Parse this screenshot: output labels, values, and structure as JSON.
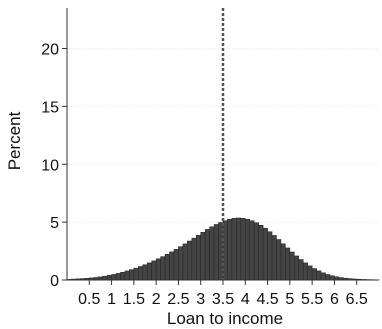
{
  "chart_data": {
    "type": "bar",
    "xlabel": "Loan to income",
    "ylabel": "Percent",
    "xlim": [
      0.0,
      7.0
    ],
    "ylim": [
      0,
      23.5
    ],
    "x_ticks": [
      0.5,
      1,
      1.5,
      2,
      2.5,
      3,
      3.5,
      4,
      4.5,
      5,
      5.5,
      6,
      6.5
    ],
    "x_tick_labels": [
      "0.5",
      "1",
      "1.5",
      "2",
      "2.5",
      "3",
      "3.5",
      "4",
      "4.5",
      "5",
      "5.5",
      "6",
      "6.5"
    ],
    "y_ticks": [
      0,
      5,
      10,
      15,
      20
    ],
    "y_tick_labels": [
      "0",
      "5",
      "10",
      "15",
      "20"
    ],
    "grid": "horizontal dotted",
    "reference_line_x": 3.5,
    "bin_width": 0.1,
    "bin_starts": [
      0.0,
      0.1,
      0.2,
      0.3,
      0.4,
      0.5,
      0.6,
      0.7,
      0.8,
      0.9,
      1.0,
      1.1,
      1.2,
      1.3,
      1.4,
      1.5,
      1.6,
      1.7,
      1.8,
      1.9,
      2.0,
      2.1,
      2.2,
      2.3,
      2.4,
      2.5,
      2.6,
      2.7,
      2.8,
      2.9,
      3.0,
      3.1,
      3.2,
      3.3,
      3.4,
      3.5,
      3.6,
      3.7,
      3.8,
      3.9,
      4.0,
      4.1,
      4.2,
      4.3,
      4.4,
      4.5,
      4.6,
      4.7,
      4.8,
      4.9,
      5.0,
      5.1,
      5.2,
      5.3,
      5.4,
      5.5,
      5.6,
      5.7,
      5.8,
      5.9,
      6.0,
      6.1,
      6.2,
      6.3,
      6.4,
      6.5,
      6.6,
      6.7,
      6.8,
      6.9
    ],
    "values": [
      0.05,
      0.08,
      0.1,
      0.12,
      0.15,
      0.18,
      0.22,
      0.27,
      0.33,
      0.4,
      0.48,
      0.57,
      0.67,
      0.78,
      0.9,
      1.03,
      1.17,
      1.32,
      1.48,
      1.65,
      1.83,
      2.02,
      2.22,
      2.43,
      2.65,
      2.88,
      3.12,
      3.37,
      3.62,
      3.87,
      4.12,
      4.37,
      4.6,
      4.8,
      4.97,
      5.12,
      5.25,
      5.33,
      5.36,
      5.33,
      5.25,
      5.12,
      4.95,
      4.73,
      4.47,
      4.17,
      3.85,
      3.5,
      3.13,
      2.77,
      2.42,
      2.08,
      1.77,
      1.48,
      1.22,
      0.99,
      0.79,
      0.62,
      0.48,
      0.37,
      0.28,
      0.21,
      0.16,
      0.12,
      0.09,
      0.07,
      0.05,
      0.04,
      0.03,
      0.02
    ]
  }
}
